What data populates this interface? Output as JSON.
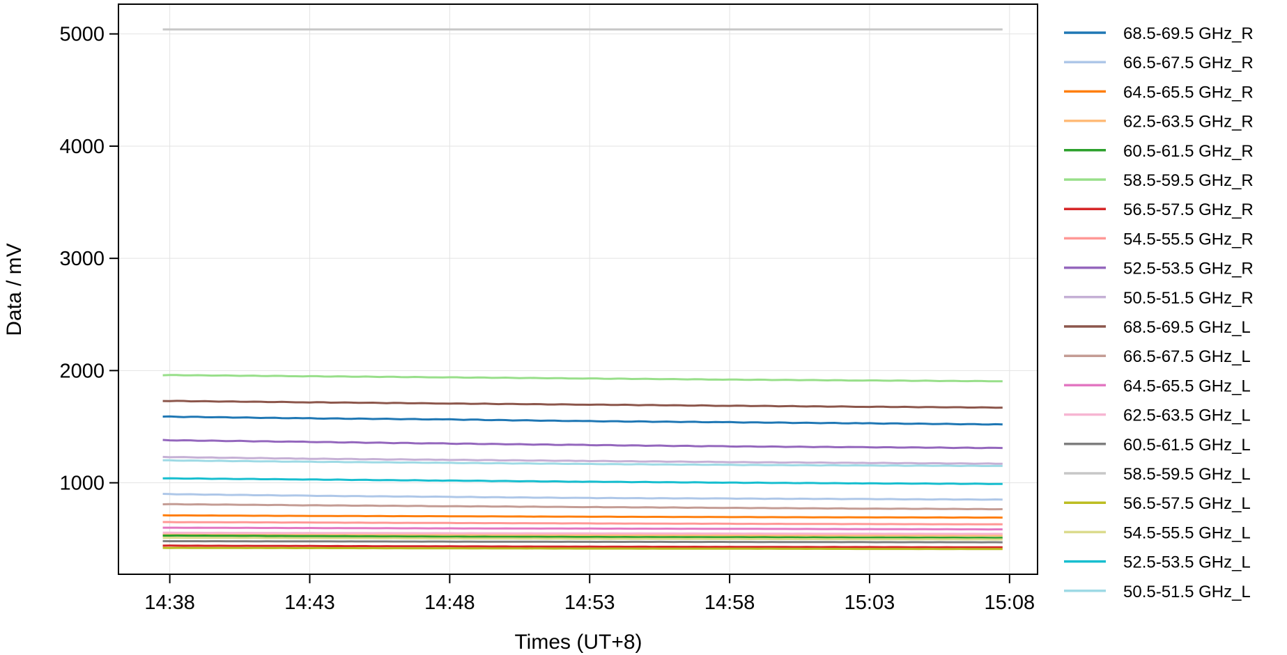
{
  "chart_data": {
    "type": "line",
    "title": "",
    "xlabel": "Times (UT+8)",
    "ylabel": "Data / mV",
    "xlim": [
      "14:36:10",
      "15:09:00"
    ],
    "ylim": [
      185,
      5265
    ],
    "grid": true,
    "legend_placement": "outside-right",
    "x_ticks": [
      "14:38",
      "14:43",
      "14:48",
      "14:53",
      "14:58",
      "15:03",
      "15:08"
    ],
    "y_ticks": [
      1000,
      2000,
      3000,
      4000,
      5000
    ],
    "x": [
      "14:37:45",
      "14:42:45",
      "14:47:45",
      "14:52:45",
      "14:57:45",
      "15:02:45",
      "15:07:45"
    ],
    "series": [
      {
        "name": "68.5-69.5 GHz_R",
        "color": "#1f77b4",
        "values": [
          1590,
          1575,
          1565,
          1550,
          1540,
          1530,
          1520
        ]
      },
      {
        "name": "66.5-67.5 GHz_R",
        "color": "#aec7e8",
        "values": [
          900,
          885,
          875,
          865,
          860,
          855,
          850
        ]
      },
      {
        "name": "64.5-65.5 GHz_R",
        "color": "#ff7f0e",
        "values": [
          710,
          705,
          702,
          698,
          695,
          692,
          690
        ]
      },
      {
        "name": "62.5-63.5 GHz_R",
        "color": "#ffbb78",
        "values": [
          540,
          538,
          536,
          534,
          533,
          531,
          530
        ]
      },
      {
        "name": "60.5-61.5 GHz_R",
        "color": "#2ca02c",
        "values": [
          530,
          525,
          520,
          517,
          515,
          512,
          510
        ]
      },
      {
        "name": "58.5-59.5 GHz_R",
        "color": "#98df8a",
        "values": [
          1960,
          1950,
          1940,
          1930,
          1920,
          1912,
          1905
        ]
      },
      {
        "name": "56.5-57.5 GHz_R",
        "color": "#d62728",
        "values": [
          440,
          437,
          434,
          431,
          429,
          427,
          425
        ]
      },
      {
        "name": "54.5-55.5 GHz_R",
        "color": "#ff9896",
        "values": [
          650,
          646,
          642,
          638,
          635,
          632,
          630
        ]
      },
      {
        "name": "52.5-53.5 GHz_R",
        "color": "#9467bd",
        "values": [
          1380,
          1365,
          1350,
          1337,
          1325,
          1317,
          1310
        ]
      },
      {
        "name": "50.5-51.5 GHz_R",
        "color": "#c5b0d5",
        "values": [
          1230,
          1215,
          1205,
          1195,
          1185,
          1177,
          1170
        ]
      },
      {
        "name": "68.5-69.5 GHz_L",
        "color": "#8c564b",
        "values": [
          1730,
          1718,
          1707,
          1697,
          1687,
          1678,
          1670
        ]
      },
      {
        "name": "66.5-67.5 GHz_L",
        "color": "#c49c94",
        "values": [
          810,
          800,
          792,
          784,
          777,
          770,
          765
        ]
      },
      {
        "name": "64.5-65.5 GHz_L",
        "color": "#e377c2",
        "values": [
          600,
          597,
          594,
          592,
          590,
          587,
          585
        ]
      },
      {
        "name": "62.5-63.5 GHz_L",
        "color": "#f7b6d2",
        "values": [
          555,
          553,
          551,
          549,
          548,
          546,
          545
        ]
      },
      {
        "name": "60.5-61.5 GHz_L",
        "color": "#7f7f7f",
        "values": [
          480,
          478,
          476,
          474,
          473,
          471,
          470
        ]
      },
      {
        "name": "58.5-59.5 GHz_L",
        "color": "#c7c7c7",
        "values": [
          5040,
          5040,
          5040,
          5040,
          5040,
          5040,
          5040
        ]
      },
      {
        "name": "56.5-57.5 GHz_L",
        "color": "#bcbd22",
        "values": [
          420,
          418,
          416,
          414,
          413,
          411,
          410
        ]
      },
      {
        "name": "54.5-55.5 GHz_L",
        "color": "#dbdb8d",
        "values": [
          510,
          507,
          504,
          501,
          499,
          497,
          495
        ]
      },
      {
        "name": "52.5-53.5 GHz_L",
        "color": "#17becf",
        "values": [
          1040,
          1030,
          1020,
          1010,
          1002,
          995,
          990
        ]
      },
      {
        "name": "50.5-51.5 GHz_L",
        "color": "#9edae5",
        "values": [
          1200,
          1188,
          1178,
          1168,
          1160,
          1154,
          1150
        ]
      }
    ]
  }
}
